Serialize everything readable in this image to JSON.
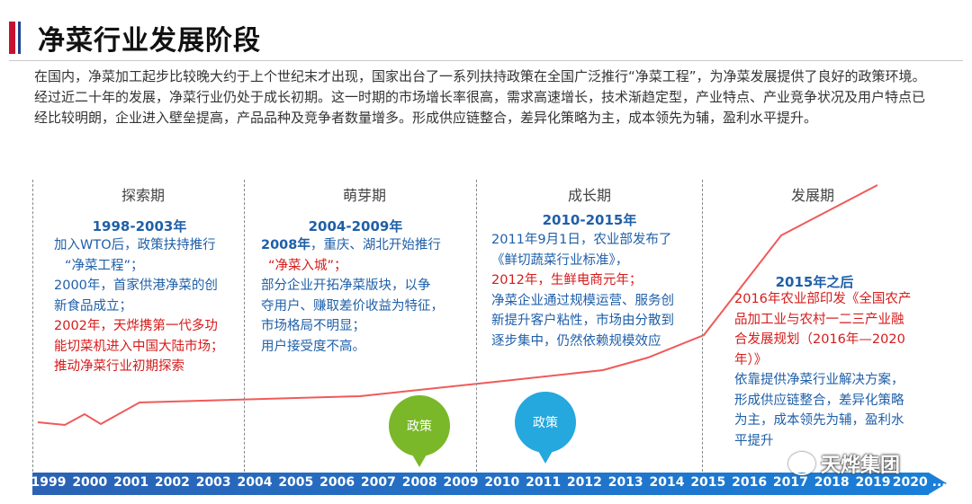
{
  "title": "净菜行业发展阶段",
  "intro": {
    "p1": "在国内，净菜加工起步比较晚大约于上个世纪末才出现，国家出台了一系列扶持政策在全国广泛推行“净菜工程”，为净菜发展提供了良好的政策环境。",
    "p2": "经过近二十年的发展，净菜行业仍处于成长初期。这一时期的市场增长率很高，需求高速增长，技术渐趋定型，产业特点、产业竞争状况及用户特点已经比较明朗，企业进入壁垒提高，产品品种及竞争者数量增多。形成供应链整合，差异化策略为主，成本领先为辅，盈利水平提升。"
  },
  "phases": [
    {
      "name": "探索期",
      "period": "1998-2003年",
      "lines": [
        "加入WTO后，政策扶持推行",
        "“净菜工程”；",
        "2000年，首家供港净菜的创",
        "新食品成立；",
        "2002年，天烨携第一代多功",
        "能切菜机进入中国大陆市场；",
        "推动净菜行业初期探索"
      ]
    },
    {
      "name": "萌芽期",
      "period": "2004-2009年",
      "lines": [
        "2008年，重庆、湖北开始推行",
        "“净菜入城”；",
        "部分企业开拓净菜版块，以争",
        "夺用户、赚取差价收益为特征，",
        "市场格局不明显；",
        "用户接受度不高。"
      ]
    },
    {
      "name": "成长期",
      "period": "2010-2015年",
      "lines": [
        "2011年9月1日，农业部发布了",
        "《鲜切蔬菜行业标准》，",
        "2012年，生鲜电商元年；",
        "净菜企业通过规模运营、服务创",
        "新提升客户粘性，市场由分散到",
        "逐步集中，仍然依赖规模效应"
      ]
    },
    {
      "name": "发展期",
      "period": "2015年之后",
      "lines": [
        "2016年农业部印发《全国农产",
        "品加工业与农村一二三产业融",
        "合发展规划（2016年—2020",
        "年）》",
        "依靠提供净菜行业解决方案，",
        "形成供应链整合，差异化策略",
        "为主，成本领先为辅，盈利水",
        "平提升"
      ]
    }
  ],
  "years": [
    "1999",
    "2000",
    "2001",
    "2002",
    "2003",
    "2004",
    "2005",
    "2006",
    "2007",
    "2008",
    "2009",
    "2010",
    "2011",
    "2012",
    "2013",
    "2014",
    "2015",
    "2016",
    "2017",
    "2018",
    "2019",
    "2020 ...."
  ],
  "bubbles": {
    "b1": "政策",
    "b2": "政策"
  },
  "watermark": "天烨集团",
  "colors": {
    "accent_blue": "#1f5fa8",
    "accent_red": "#d61b1b",
    "curve": "#f05a5a",
    "timeline": "#1a6fd0",
    "bubble_green": "#7ab829",
    "bubble_cyan": "#24a8de"
  }
}
